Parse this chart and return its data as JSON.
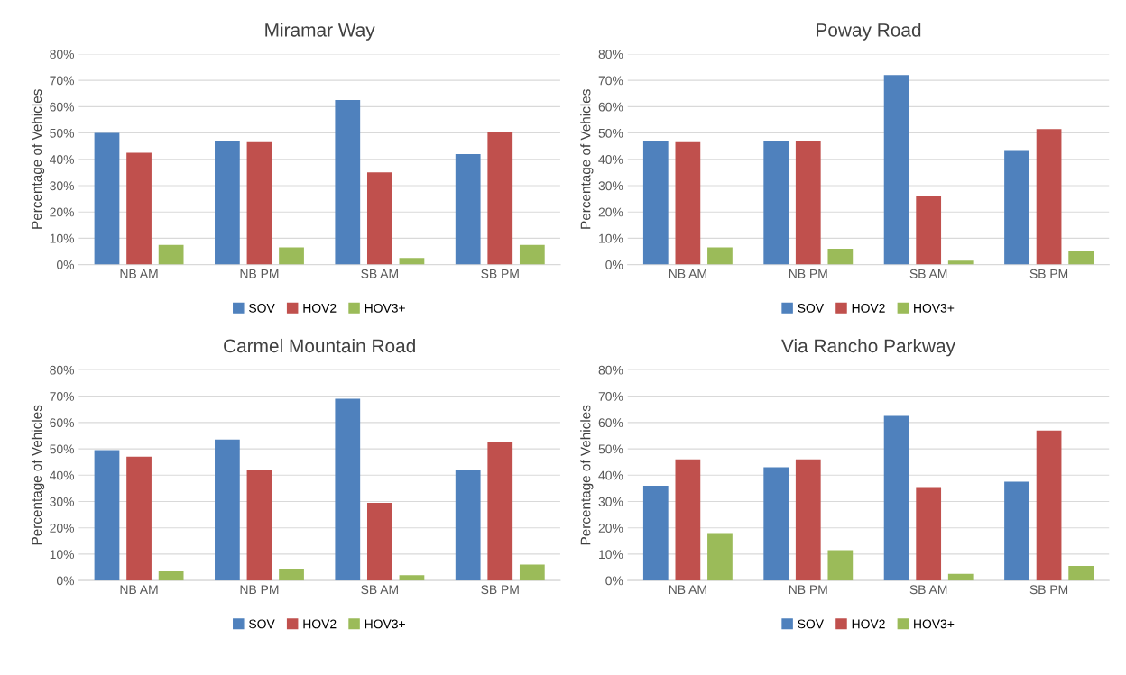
{
  "chart_data": [
    {
      "type": "bar",
      "title": "Miramar Way",
      "ylabel": "Percentage of Vehicles",
      "categories": [
        "NB AM",
        "NB PM",
        "SB AM",
        "SB PM"
      ],
      "series": [
        {
          "name": "SOV",
          "color": "#4f81bd",
          "values": [
            50.0,
            47.0,
            62.5,
            42.0
          ]
        },
        {
          "name": "HOV2",
          "color": "#c0504d",
          "values": [
            42.5,
            46.5,
            35.0,
            50.5
          ]
        },
        {
          "name": "HOV3+",
          "color": "#9bbb59",
          "values": [
            7.5,
            6.5,
            2.5,
            7.5
          ]
        }
      ],
      "ylim": [
        0,
        80
      ],
      "yticks": [
        {
          "value": 0,
          "label": "0%"
        },
        {
          "value": 10,
          "label": "10%"
        },
        {
          "value": 20,
          "label": "20%"
        },
        {
          "value": 30,
          "label": "30%"
        },
        {
          "value": 40,
          "label": "40%"
        },
        {
          "value": 50,
          "label": "50%"
        },
        {
          "value": 60,
          "label": "60%"
        },
        {
          "value": 70,
          "label": "70%"
        },
        {
          "value": 80,
          "label": "80%"
        }
      ],
      "grid": "y",
      "legend": "bottom"
    },
    {
      "type": "bar",
      "title": "Poway Road",
      "ylabel": "Percentage of Vehicles",
      "categories": [
        "NB AM",
        "NB PM",
        "SB AM",
        "SB PM"
      ],
      "series": [
        {
          "name": "SOV",
          "color": "#4f81bd",
          "values": [
            47.0,
            47.0,
            72.0,
            43.5
          ]
        },
        {
          "name": "HOV2",
          "color": "#c0504d",
          "values": [
            46.5,
            47.0,
            26.0,
            51.5
          ]
        },
        {
          "name": "HOV3+",
          "color": "#9bbb59",
          "values": [
            6.5,
            6.0,
            1.5,
            5.0
          ]
        }
      ],
      "ylim": [
        0,
        80
      ],
      "yticks": [
        {
          "value": 0,
          "label": "0%"
        },
        {
          "value": 10,
          "label": "10%"
        },
        {
          "value": 20,
          "label": "20%"
        },
        {
          "value": 30,
          "label": "30%"
        },
        {
          "value": 40,
          "label": "40%"
        },
        {
          "value": 50,
          "label": "50%"
        },
        {
          "value": 60,
          "label": "60%"
        },
        {
          "value": 70,
          "label": "70%"
        },
        {
          "value": 80,
          "label": "80%"
        }
      ],
      "grid": "y",
      "legend": "bottom"
    },
    {
      "type": "bar",
      "title": "Carmel Mountain Road",
      "ylabel": "Percentage of Vehicles",
      "categories": [
        "NB AM",
        "NB PM",
        "SB AM",
        "SB PM"
      ],
      "series": [
        {
          "name": "SOV",
          "color": "#4f81bd",
          "values": [
            49.5,
            53.5,
            69.0,
            42.0
          ]
        },
        {
          "name": "HOV2",
          "color": "#c0504d",
          "values": [
            47.0,
            42.0,
            29.5,
            52.5
          ]
        },
        {
          "name": "HOV3+",
          "color": "#9bbb59",
          "values": [
            3.5,
            4.5,
            2.0,
            6.0
          ]
        }
      ],
      "ylim": [
        0,
        80
      ],
      "yticks": [
        {
          "value": 0,
          "label": "0%"
        },
        {
          "value": 10,
          "label": "10%"
        },
        {
          "value": 20,
          "label": "20%"
        },
        {
          "value": 30,
          "label": "30%"
        },
        {
          "value": 40,
          "label": "40%"
        },
        {
          "value": 50,
          "label": "50%"
        },
        {
          "value": 60,
          "label": "60%"
        },
        {
          "value": 70,
          "label": "70%"
        },
        {
          "value": 80,
          "label": "80%"
        }
      ],
      "grid": "y",
      "legend": "bottom"
    },
    {
      "type": "bar",
      "title": "Via Rancho Parkway",
      "ylabel": "Percentage of Vehicles",
      "categories": [
        "NB AM",
        "NB PM",
        "SB AM",
        "SB PM"
      ],
      "series": [
        {
          "name": "SOV",
          "color": "#4f81bd",
          "values": [
            36.0,
            43.0,
            62.5,
            37.5
          ]
        },
        {
          "name": "HOV2",
          "color": "#c0504d",
          "values": [
            46.0,
            46.0,
            35.5,
            57.0
          ]
        },
        {
          "name": "HOV3+",
          "color": "#9bbb59",
          "values": [
            18.0,
            11.5,
            2.5,
            5.5
          ]
        }
      ],
      "ylim": [
        0,
        80
      ],
      "yticks": [
        {
          "value": 0,
          "label": "0%"
        },
        {
          "value": 10,
          "label": "10%"
        },
        {
          "value": 20,
          "label": "20%"
        },
        {
          "value": 30,
          "label": "30%"
        },
        {
          "value": 40,
          "label": "40%"
        },
        {
          "value": 50,
          "label": "50%"
        },
        {
          "value": 60,
          "label": "60%"
        },
        {
          "value": 70,
          "label": "70%"
        },
        {
          "value": 80,
          "label": "80%"
        }
      ],
      "grid": "y",
      "legend": "bottom"
    }
  ]
}
